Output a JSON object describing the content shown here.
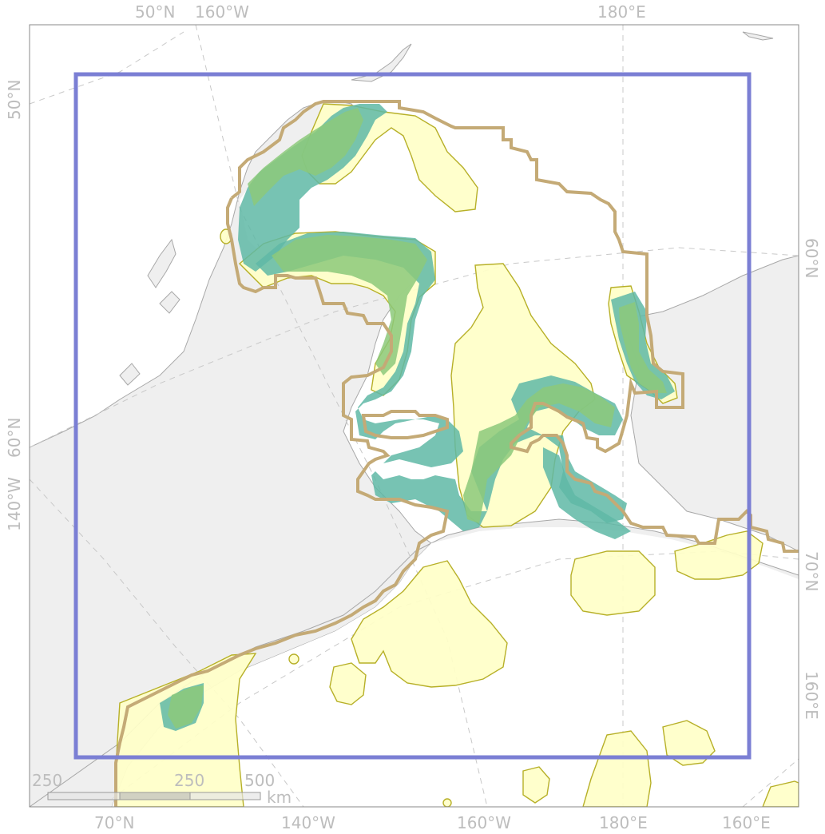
{
  "map": {
    "top_labels": [
      "50°N",
      "160°W",
      "180°E"
    ],
    "bottom_labels": [
      "70°N",
      "140°W",
      "160°W",
      "180°E",
      "160°E"
    ],
    "left_labels": [
      "50°N",
      "60°N",
      "140°W"
    ],
    "right_labels": [
      "60°N",
      "70°N",
      "160°E"
    ],
    "scalebar": {
      "ticks": [
        "250",
        "250",
        "500"
      ],
      "unit": "km"
    },
    "colors": {
      "frame": "#7b7fd4",
      "land": "#efefef",
      "yellow_zone": "#ffffc8",
      "tan_outline": "#c4aa76",
      "teal_cells": "#5fb8a6",
      "green_cells": "#8cc97a"
    }
  }
}
